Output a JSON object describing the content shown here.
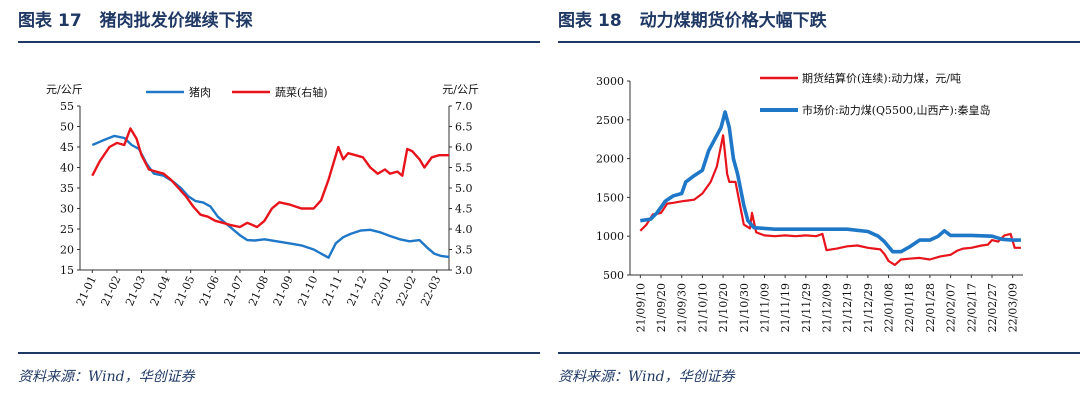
{
  "panels": [
    {
      "title_prefix": "图表",
      "figure_number": "17",
      "title": "猪肉批发价继续下探",
      "source": "资料来源：Wind，华创证券"
    },
    {
      "title_prefix": "图表",
      "figure_number": "18",
      "title": "动力煤期货价格大幅下跌",
      "source": "资料来源：Wind，华创证券"
    }
  ],
  "chart_data": [
    {
      "type": "line",
      "left_unit": "元/公斤",
      "right_unit": "元/公斤",
      "ylim_left": [
        15,
        55
      ],
      "ylim_right": [
        3.0,
        7.0
      ],
      "yticks_left": [
        "55",
        "50",
        "45",
        "40",
        "35",
        "30",
        "25",
        "20",
        "15"
      ],
      "yticks_right": [
        "7.0",
        "6.5",
        "6.0",
        "5.5",
        "5.0",
        "4.5",
        "4.0",
        "3.5",
        "3.0"
      ],
      "categories": [
        "21-01",
        "21-02",
        "21-03",
        "21-04",
        "21-05",
        "21-06",
        "21-07",
        "21-08",
        "21-09",
        "21-10",
        "21-11",
        "21-12",
        "22-01",
        "22-02",
        "22-03"
      ],
      "series": [
        {
          "name": "猪肉",
          "axis": "left",
          "color": "#1f77c8",
          "values": [
            [
              0,
              45.5
            ],
            [
              0.4,
              46.5
            ],
            [
              0.9,
              47.7
            ],
            [
              1.3,
              47.2
            ],
            [
              1.6,
              45.5
            ],
            [
              1.9,
              44.5
            ],
            [
              2.2,
              41
            ],
            [
              2.5,
              38.5
            ],
            [
              2.9,
              38
            ],
            [
              3.3,
              36.5
            ],
            [
              3.6,
              35
            ],
            [
              3.9,
              33
            ],
            [
              4.2,
              31.8
            ],
            [
              4.5,
              31.5
            ],
            [
              4.8,
              30.5
            ],
            [
              5.1,
              28
            ],
            [
              5.4,
              26.5
            ],
            [
              5.7,
              25
            ],
            [
              6.0,
              23.5
            ],
            [
              6.3,
              22.3
            ],
            [
              6.6,
              22.2
            ],
            [
              7.0,
              22.5
            ],
            [
              7.5,
              22
            ],
            [
              8.0,
              21.5
            ],
            [
              8.5,
              21
            ],
            [
              9.0,
              20
            ],
            [
              9.6,
              18
            ],
            [
              9.9,
              21.5
            ],
            [
              10.2,
              23
            ],
            [
              10.5,
              23.8
            ],
            [
              10.9,
              24.6
            ],
            [
              11.3,
              24.8
            ],
            [
              11.7,
              24.2
            ],
            [
              12.1,
              23.3
            ],
            [
              12.5,
              22.5
            ],
            [
              12.9,
              22
            ],
            [
              13.3,
              22.3
            ],
            [
              13.6,
              20.5
            ],
            [
              13.9,
              19
            ],
            [
              14.2,
              18.4
            ],
            [
              14.5,
              18.2
            ]
          ]
        },
        {
          "name": "蔬菜(右轴)",
          "axis": "right",
          "color": "#e8141c",
          "values": [
            [
              0,
              5.3
            ],
            [
              0.3,
              5.65
            ],
            [
              0.7,
              6.0
            ],
            [
              1.0,
              6.1
            ],
            [
              1.3,
              6.05
            ],
            [
              1.55,
              6.45
            ],
            [
              1.8,
              6.2
            ],
            [
              2.0,
              5.8
            ],
            [
              2.3,
              5.45
            ],
            [
              2.6,
              5.4
            ],
            [
              2.9,
              5.35
            ],
            [
              3.2,
              5.2
            ],
            [
              3.5,
              5.0
            ],
            [
              3.8,
              4.8
            ],
            [
              4.1,
              4.55
            ],
            [
              4.4,
              4.35
            ],
            [
              4.7,
              4.3
            ],
            [
              5.0,
              4.2
            ],
            [
              5.3,
              4.15
            ],
            [
              5.6,
              4.1
            ],
            [
              6.0,
              4.05
            ],
            [
              6.3,
              4.15
            ],
            [
              6.7,
              4.05
            ],
            [
              7.0,
              4.2
            ],
            [
              7.3,
              4.5
            ],
            [
              7.6,
              4.65
            ],
            [
              8.0,
              4.6
            ],
            [
              8.5,
              4.5
            ],
            [
              9.0,
              4.5
            ],
            [
              9.3,
              4.7
            ],
            [
              9.6,
              5.2
            ],
            [
              9.8,
              5.6
            ],
            [
              10.0,
              6.0
            ],
            [
              10.2,
              5.7
            ],
            [
              10.4,
              5.85
            ],
            [
              10.7,
              5.8
            ],
            [
              11.0,
              5.75
            ],
            [
              11.3,
              5.5
            ],
            [
              11.6,
              5.35
            ],
            [
              11.9,
              5.45
            ],
            [
              12.1,
              5.35
            ],
            [
              12.4,
              5.4
            ],
            [
              12.6,
              5.3
            ],
            [
              12.8,
              5.95
            ],
            [
              13.0,
              5.9
            ],
            [
              13.3,
              5.7
            ],
            [
              13.5,
              5.5
            ],
            [
              13.8,
              5.75
            ],
            [
              14.1,
              5.8
            ],
            [
              14.5,
              5.8
            ]
          ]
        }
      ]
    },
    {
      "type": "line",
      "ylim": [
        500,
        3000
      ],
      "yticks": [
        "3000",
        "2500",
        "2000",
        "1500",
        "1000",
        "500"
      ],
      "categories": [
        "21/09/10",
        "21/09/20",
        "21/09/30",
        "21/10/10",
        "21/10/20",
        "21/10/30",
        "21/11/09",
        "21/11/19",
        "21/11/29",
        "21/12/09",
        "21/12/19",
        "21/12/29",
        "22/01/08",
        "22/01/18",
        "22/01/28",
        "22/02/07",
        "22/02/17",
        "22/02/27",
        "22/03/09"
      ],
      "series": [
        {
          "name": "期货结算价(连续):动力煤，元/吨",
          "color": "#e8141c",
          "values": [
            [
              0,
              1070
            ],
            [
              0.3,
              1150
            ],
            [
              0.6,
              1280
            ],
            [
              1.0,
              1300
            ],
            [
              1.3,
              1420
            ],
            [
              1.6,
              1430
            ],
            [
              2.0,
              1450
            ],
            [
              2.3,
              1460
            ],
            [
              2.6,
              1470
            ],
            [
              3.0,
              1550
            ],
            [
              3.4,
              1700
            ],
            [
              3.7,
              1900
            ],
            [
              4.0,
              2300
            ],
            [
              4.2,
              1800
            ],
            [
              4.3,
              1700
            ],
            [
              4.6,
              1700
            ],
            [
              5.0,
              1150
            ],
            [
              5.3,
              1100
            ],
            [
              5.4,
              1300
            ],
            [
              5.6,
              1050
            ],
            [
              6.0,
              1010
            ],
            [
              6.5,
              1000
            ],
            [
              7.0,
              1010
            ],
            [
              7.5,
              1000
            ],
            [
              8.0,
              1010
            ],
            [
              8.5,
              1000
            ],
            [
              8.8,
              1030
            ],
            [
              9.0,
              820
            ],
            [
              9.5,
              840
            ],
            [
              10.0,
              870
            ],
            [
              10.5,
              880
            ],
            [
              11.0,
              850
            ],
            [
              11.3,
              840
            ],
            [
              11.6,
              830
            ],
            [
              11.8,
              770
            ],
            [
              12.0,
              680
            ],
            [
              12.3,
              630
            ],
            [
              12.6,
              700
            ],
            [
              13.0,
              710
            ],
            [
              13.5,
              720
            ],
            [
              14.0,
              700
            ],
            [
              14.5,
              740
            ],
            [
              15.0,
              760
            ],
            [
              15.3,
              810
            ],
            [
              15.6,
              840
            ],
            [
              16.0,
              850
            ],
            [
              16.5,
              880
            ],
            [
              16.8,
              890
            ],
            [
              17.0,
              950
            ],
            [
              17.3,
              930
            ],
            [
              17.6,
              1010
            ],
            [
              17.9,
              1030
            ],
            [
              18.1,
              850
            ],
            [
              18.4,
              850
            ]
          ]
        },
        {
          "name": "市场价:动力煤(Q5500,山西产):秦皇岛",
          "color": "#1f77c8",
          "values": [
            [
              0,
              1200
            ],
            [
              0.5,
              1220
            ],
            [
              0.8,
              1300
            ],
            [
              1.2,
              1450
            ],
            [
              1.6,
              1520
            ],
            [
              2.0,
              1550
            ],
            [
              2.2,
              1700
            ],
            [
              2.6,
              1780
            ],
            [
              3.0,
              1850
            ],
            [
              3.3,
              2100
            ],
            [
              3.6,
              2250
            ],
            [
              3.9,
              2400
            ],
            [
              4.1,
              2600
            ],
            [
              4.3,
              2400
            ],
            [
              4.5,
              2000
            ],
            [
              4.7,
              1800
            ],
            [
              5.0,
              1400
            ],
            [
              5.2,
              1200
            ],
            [
              5.5,
              1110
            ],
            [
              6.0,
              1100
            ],
            [
              6.5,
              1090
            ],
            [
              7.0,
              1090
            ],
            [
              8.0,
              1090
            ],
            [
              9.0,
              1090
            ],
            [
              10.0,
              1090
            ],
            [
              11.0,
              1060
            ],
            [
              11.5,
              1000
            ],
            [
              11.8,
              930
            ],
            [
              12.2,
              800
            ],
            [
              12.6,
              800
            ],
            [
              13.0,
              860
            ],
            [
              13.5,
              950
            ],
            [
              14.0,
              950
            ],
            [
              14.4,
              1000
            ],
            [
              14.7,
              1070
            ],
            [
              15.0,
              1010
            ],
            [
              16.0,
              1010
            ],
            [
              17.0,
              1000
            ],
            [
              17.5,
              960
            ],
            [
              18.0,
              950
            ],
            [
              18.4,
              950
            ]
          ]
        }
      ]
    }
  ]
}
